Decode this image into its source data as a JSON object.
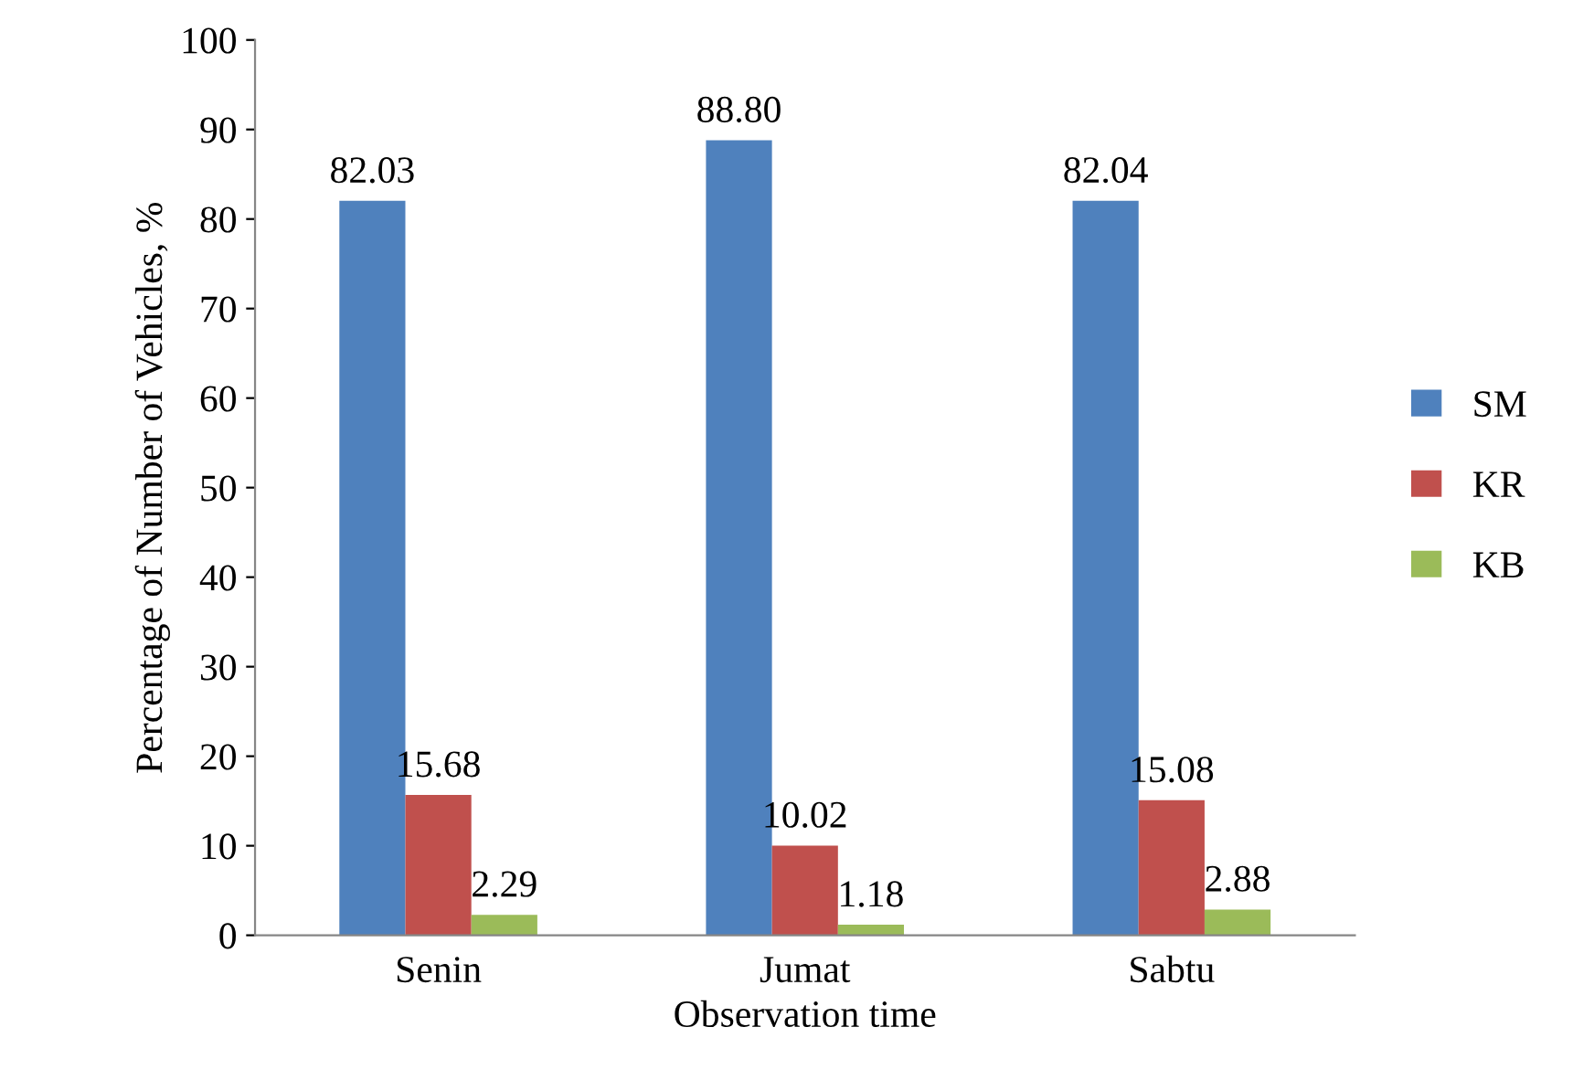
{
  "chart_data": {
    "type": "bar",
    "xlabel": "Observation time",
    "ylabel": "Percentage of Number of Vehicles, %",
    "categories": [
      "Senin",
      "Jumat",
      "Sabtu"
    ],
    "series": [
      {
        "name": "SM",
        "color": "#4f81bd",
        "values": [
          82.03,
          88.8,
          82.04
        ],
        "value_labels": [
          "82.03",
          "88.80",
          "82.04"
        ]
      },
      {
        "name": "KR",
        "color": "#c0504d",
        "values": [
          15.68,
          10.02,
          15.08
        ],
        "value_labels": [
          "15.68",
          "10.02",
          "15.08"
        ]
      },
      {
        "name": "KB",
        "color": "#9bbb59",
        "values": [
          2.29,
          1.18,
          2.88
        ],
        "value_labels": [
          "2.29",
          "1.18",
          "2.88"
        ]
      }
    ],
    "ylim": [
      0,
      100
    ],
    "yticks": [
      0,
      10,
      20,
      30,
      40,
      50,
      60,
      70,
      80,
      90,
      100
    ],
    "grid": false,
    "legend": "right"
  }
}
